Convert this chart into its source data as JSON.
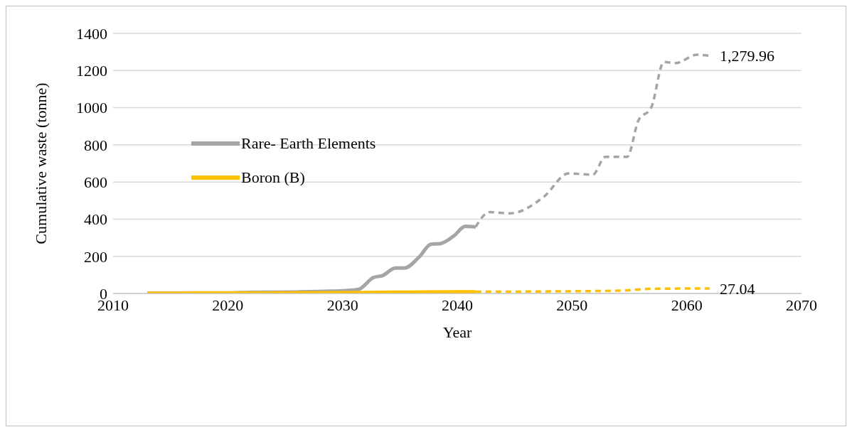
{
  "chart_data": {
    "type": "line",
    "xlabel": "Year",
    "ylabel": "Cumulative waste (tonne)",
    "xlim": [
      2010,
      2070
    ],
    "xticks": [
      2010,
      2020,
      2030,
      2040,
      2050,
      2060,
      2070
    ],
    "ylim": [
      0,
      1400
    ],
    "yticks": [
      0,
      200,
      400,
      600,
      800,
      1000,
      1200,
      1400
    ],
    "grid": "y",
    "legend": "top left",
    "marker": "none",
    "series": [
      {
        "name": "Rare- Earth Elements",
        "color": "#a5a5a5",
        "line_style": "solid",
        "x": [
          2013,
          2020,
          2022,
          2026,
          2029,
          2030.5,
          2031.4,
          2032.7,
          2033.5,
          2034.6,
          2035.4,
          2036.7,
          2037.7,
          2038.5,
          2039.7,
          2040.7,
          2041.6
        ],
        "values": [
          2,
          3,
          6,
          8,
          12,
          16,
          22,
          86,
          96,
          137,
          137,
          198,
          265,
          268,
          310,
          361,
          358
        ]
      },
      {
        "name": "Boron (B)",
        "color": "#ffc000",
        "line_style": "solid",
        "x": [
          2013,
          2020,
          2030,
          2036,
          2040,
          2041.6
        ],
        "values": [
          1,
          2,
          4,
          7,
          9,
          9
        ]
      },
      {
        "color": "#a5a5a5",
        "line_style": "dashed",
        "x": [
          2041.6,
          2042.8,
          2044.6,
          2047.5,
          2049.7,
          2051.8,
          2052.9,
          2054.8,
          2055.8,
          2056.9,
          2058,
          2059,
          2060.9,
          2062
        ],
        "values": [
          358,
          438,
          431,
          518,
          646,
          639,
          735,
          735,
          933,
          1000,
          1246,
          1240,
          1285,
          1279.96
        ]
      },
      {
        "color": "#ffc000",
        "line_style": "dashed",
        "x": [
          2041.6,
          2050,
          2054,
          2057,
          2062
        ],
        "values": [
          9,
          12,
          15,
          25,
          27.04
        ]
      }
    ],
    "annotations": [
      {
        "text": "1,279.96",
        "x": 2062,
        "y": 1279.96
      },
      {
        "text": "27.04",
        "x": 2062,
        "y": 27.04
      }
    ]
  }
}
